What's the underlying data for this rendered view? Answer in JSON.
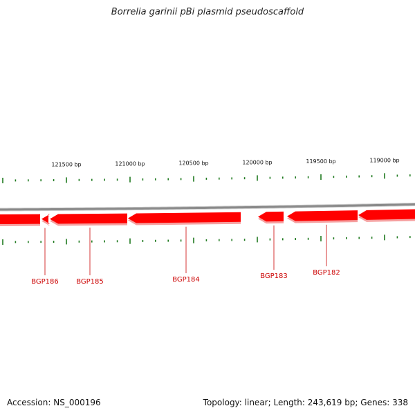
{
  "title": "Borrelia garinii pBi plasmid pseudoscaffold",
  "footer": {
    "accession_label": "Accession:",
    "accession": "NS_000196",
    "topology_label": "Topology:",
    "topology": "linear",
    "length_label": "Length:",
    "length": "243,619 bp",
    "genes_label": "Genes:",
    "genes": "338"
  },
  "scale": {
    "unit": "bp",
    "labels": [
      "121500 bp",
      "121000 bp",
      "120500 bp",
      "120000 bp",
      "119500 bp",
      "119000 bp"
    ],
    "label_positions_bp": [
      121500,
      121000,
      120500,
      120000,
      119500,
      119000
    ]
  },
  "genes": [
    {
      "label": "BGP186",
      "strand": "-"
    },
    {
      "label": "BGP185",
      "strand": "-"
    },
    {
      "label": "BGP184",
      "strand": "-"
    },
    {
      "label": "BGP183",
      "strand": "-"
    },
    {
      "label": "BGP182",
      "strand": "-"
    }
  ],
  "colors": {
    "backbone": "#8a8a8a",
    "gene_fill": "#ff0000",
    "gene_shadow": "#f6a0a0",
    "tick": "#1f7a1f",
    "gene_label": "#cc0000"
  }
}
